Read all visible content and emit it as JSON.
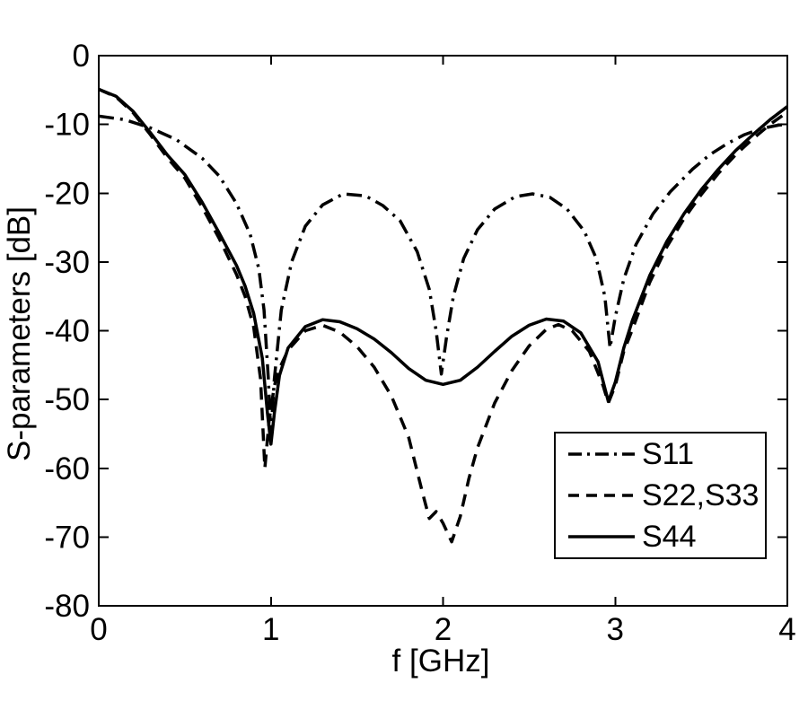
{
  "figure": {
    "background": "#ffffff",
    "ink_color": "#000000"
  },
  "axes": {
    "x_label": "f [GHz]",
    "y_label": "S-parameters [dB]",
    "x_tick_labels": [
      "0",
      "1",
      "2",
      "3",
      "4"
    ],
    "y_tick_labels": [
      "0",
      "-10",
      "-20",
      "-30",
      "-40",
      "-50",
      "-60",
      "-70",
      "-80"
    ]
  },
  "legend": {
    "entries": [
      {
        "label": "S11",
        "style": "dash-dot"
      },
      {
        "label": "S22,S33",
        "style": "dashed"
      },
      {
        "label": "S44",
        "style": "solid"
      }
    ]
  },
  "chart_data": {
    "type": "line",
    "title": "",
    "xlabel": "f [GHz]",
    "ylabel": "S-parameters [dB]",
    "xlim": [
      0,
      4
    ],
    "ylim": [
      -80,
      0
    ],
    "x_ticks": [
      0,
      1,
      2,
      3,
      4
    ],
    "y_ticks": [
      0,
      -10,
      -20,
      -30,
      -40,
      -50,
      -60,
      -70,
      -80
    ],
    "grid": false,
    "legend_position": "lower right",
    "line_color": "#000000",
    "series": [
      {
        "name": "S11",
        "style": "dash-dot",
        "points": [
          [
            0,
            -8.8
          ],
          [
            0.15,
            -9.3
          ],
          [
            0.3,
            -10.5
          ],
          [
            0.45,
            -12.2
          ],
          [
            0.6,
            -14.9
          ],
          [
            0.7,
            -17.5
          ],
          [
            0.8,
            -21.5
          ],
          [
            0.88,
            -26
          ],
          [
            0.93,
            -31
          ],
          [
            0.96,
            -37
          ],
          [
            0.985,
            -47
          ],
          [
            1.0,
            -55
          ],
          [
            1.02,
            -47
          ],
          [
            1.06,
            -37
          ],
          [
            1.12,
            -30
          ],
          [
            1.2,
            -24.8
          ],
          [
            1.3,
            -21.7
          ],
          [
            1.42,
            -20.1
          ],
          [
            1.55,
            -20.4
          ],
          [
            1.65,
            -21.8
          ],
          [
            1.75,
            -24
          ],
          [
            1.85,
            -28.5
          ],
          [
            1.92,
            -34
          ],
          [
            1.96,
            -40
          ],
          [
            1.99,
            -46.3
          ],
          [
            2.02,
            -41
          ],
          [
            2.06,
            -35
          ],
          [
            2.12,
            -29.5
          ],
          [
            2.2,
            -25.3
          ],
          [
            2.3,
            -22.3
          ],
          [
            2.42,
            -20.5
          ],
          [
            2.52,
            -20.1
          ],
          [
            2.62,
            -20.6
          ],
          [
            2.72,
            -22.3
          ],
          [
            2.82,
            -25.5
          ],
          [
            2.89,
            -29.5
          ],
          [
            2.94,
            -35
          ],
          [
            2.97,
            -42.5
          ],
          [
            3.0,
            -38
          ],
          [
            3.05,
            -32.5
          ],
          [
            3.12,
            -27.5
          ],
          [
            3.22,
            -23
          ],
          [
            3.32,
            -19.8
          ],
          [
            3.45,
            -16.5
          ],
          [
            3.55,
            -14.4
          ],
          [
            3.65,
            -12.8
          ],
          [
            3.75,
            -11.5
          ],
          [
            3.85,
            -10.6
          ],
          [
            3.95,
            -10.1
          ],
          [
            4.0,
            -10
          ]
        ]
      },
      {
        "name": "S22,S33",
        "style": "dashed",
        "points": [
          [
            0,
            -4.9
          ],
          [
            0.1,
            -6.0
          ],
          [
            0.2,
            -8.3
          ],
          [
            0.3,
            -11.5
          ],
          [
            0.4,
            -14.9
          ],
          [
            0.5,
            -17.8
          ],
          [
            0.6,
            -22
          ],
          [
            0.7,
            -26.6
          ],
          [
            0.8,
            -31.8
          ],
          [
            0.85,
            -35
          ],
          [
            0.9,
            -39.5
          ],
          [
            0.94,
            -47
          ],
          [
            0.965,
            -60
          ],
          [
            0.99,
            -53
          ],
          [
            1.02,
            -48
          ],
          [
            1.05,
            -45.5
          ],
          [
            1.1,
            -42.8
          ],
          [
            1.2,
            -40
          ],
          [
            1.3,
            -39.2
          ],
          [
            1.4,
            -40.2
          ],
          [
            1.5,
            -42.3
          ],
          [
            1.6,
            -45.3
          ],
          [
            1.7,
            -49.5
          ],
          [
            1.8,
            -55.5
          ],
          [
            1.88,
            -63.5
          ],
          [
            1.92,
            -67.3
          ],
          [
            1.96,
            -66.3
          ],
          [
            2.0,
            -68
          ],
          [
            2.05,
            -70.7
          ],
          [
            2.1,
            -67
          ],
          [
            2.15,
            -61.5
          ],
          [
            2.2,
            -57
          ],
          [
            2.3,
            -50.5
          ],
          [
            2.4,
            -45.8
          ],
          [
            2.5,
            -42.2
          ],
          [
            2.6,
            -39.8
          ],
          [
            2.67,
            -39.1
          ],
          [
            2.75,
            -40
          ],
          [
            2.85,
            -43
          ],
          [
            2.93,
            -48
          ],
          [
            2.96,
            -50.5
          ],
          [
            3.0,
            -48
          ],
          [
            3.05,
            -43
          ],
          [
            3.1,
            -39.8
          ],
          [
            3.2,
            -33
          ],
          [
            3.3,
            -27.8
          ],
          [
            3.4,
            -23.7
          ],
          [
            3.5,
            -20.2
          ],
          [
            3.6,
            -17.1
          ],
          [
            3.7,
            -14.4
          ],
          [
            3.8,
            -12.1
          ],
          [
            3.9,
            -10
          ],
          [
            4.0,
            -8.2
          ]
        ]
      },
      {
        "name": "S44",
        "style": "solid",
        "points": [
          [
            0,
            -4.9
          ],
          [
            0.1,
            -5.9
          ],
          [
            0.2,
            -8.1
          ],
          [
            0.3,
            -11.2
          ],
          [
            0.4,
            -14.5
          ],
          [
            0.5,
            -17.3
          ],
          [
            0.6,
            -21.3
          ],
          [
            0.7,
            -25.8
          ],
          [
            0.8,
            -30.5
          ],
          [
            0.85,
            -33.5
          ],
          [
            0.9,
            -37.5
          ],
          [
            0.95,
            -44
          ],
          [
            0.98,
            -52
          ],
          [
            1.0,
            -56.5
          ],
          [
            1.02,
            -52
          ],
          [
            1.05,
            -46.5
          ],
          [
            1.1,
            -42.5
          ],
          [
            1.2,
            -39.4
          ],
          [
            1.3,
            -38.4
          ],
          [
            1.4,
            -38.7
          ],
          [
            1.5,
            -39.7
          ],
          [
            1.6,
            -41.2
          ],
          [
            1.7,
            -43.2
          ],
          [
            1.8,
            -45.5
          ],
          [
            1.9,
            -47.2
          ],
          [
            2.0,
            -47.8
          ],
          [
            2.1,
            -47.2
          ],
          [
            2.2,
            -45.3
          ],
          [
            2.3,
            -43
          ],
          [
            2.4,
            -40.8
          ],
          [
            2.5,
            -39.2
          ],
          [
            2.6,
            -38.3
          ],
          [
            2.7,
            -38.6
          ],
          [
            2.8,
            -40.3
          ],
          [
            2.9,
            -44.5
          ],
          [
            2.96,
            -50.3
          ],
          [
            3.0,
            -47.5
          ],
          [
            3.05,
            -42.5
          ],
          [
            3.1,
            -38.5
          ],
          [
            3.2,
            -32
          ],
          [
            3.3,
            -27
          ],
          [
            3.4,
            -23
          ],
          [
            3.5,
            -19.5
          ],
          [
            3.6,
            -16.5
          ],
          [
            3.7,
            -13.8
          ],
          [
            3.8,
            -11.5
          ],
          [
            3.9,
            -9.3
          ],
          [
            4.0,
            -7.4
          ]
        ]
      }
    ]
  }
}
